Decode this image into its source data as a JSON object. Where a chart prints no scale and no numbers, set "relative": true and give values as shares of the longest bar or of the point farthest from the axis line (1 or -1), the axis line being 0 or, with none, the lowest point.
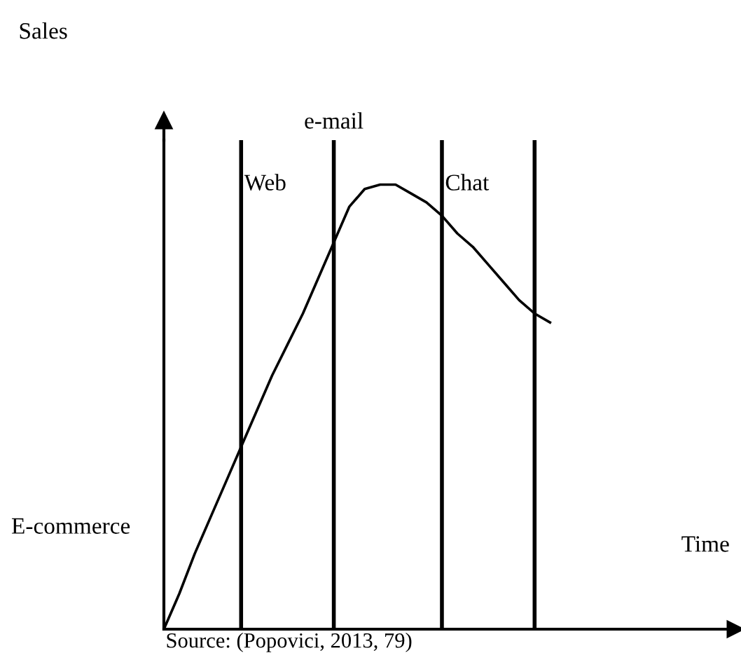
{
  "chart_data": {
    "type": "line",
    "relative": true,
    "categories": [
      null,
      null,
      null,
      null,
      null,
      null,
      null,
      null,
      null,
      null,
      null,
      null,
      null,
      null,
      null,
      null,
      null,
      null,
      null,
      null,
      null,
      null,
      null,
      null,
      null,
      null
    ],
    "series": [
      {
        "color": "#000000",
        "values": [
          0,
          0.08,
          0.17,
          0.25,
          0.33,
          0.41,
          0.49,
          0.57,
          0.64,
          0.71,
          0.79,
          0.87,
          0.95,
          0.99,
          1,
          1,
          0.98,
          0.96,
          0.93,
          0.89,
          0.86,
          0.82,
          0.78,
          0.74,
          0.71,
          0.69
        ]
      }
    ],
    "annotations": [
      "Sales",
      "Web",
      "e-mail",
      "Chat",
      "E-commerce",
      "Time",
      "Source: (Popovici, 2013, 79)"
    ],
    "grid": "x",
    "legend": false,
    "marker": "none",
    "line_style": "solid"
  }
}
